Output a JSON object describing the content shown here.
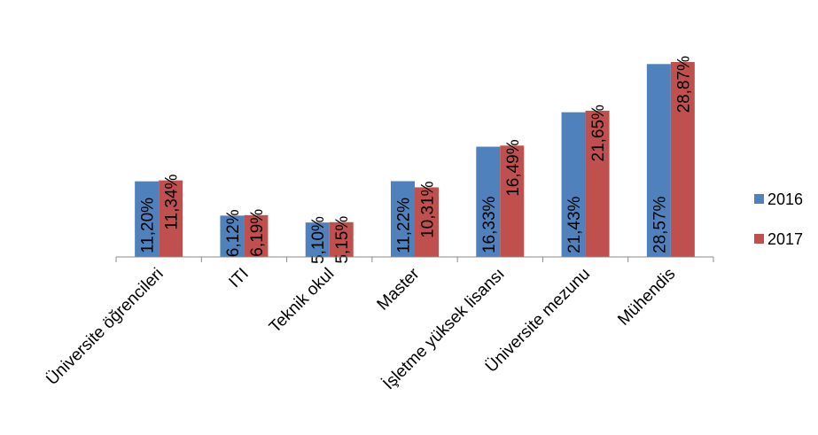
{
  "chart_data": {
    "type": "bar",
    "categories": [
      "Üniversite öğrencileri",
      "ITI",
      "Teknik okul",
      "Master",
      "İşletme yüksek lisansı",
      "Üniversite mezunu",
      "Mühendis"
    ],
    "series": [
      {
        "name": "2016",
        "color": "#4f81bd",
        "values": [
          11.2,
          6.12,
          5.1,
          11.22,
          16.33,
          21.43,
          28.57
        ],
        "labels": [
          "11,20%",
          "6,12%",
          "5,10%",
          "11,22%",
          "16,33%",
          "21,43%",
          "28,57%"
        ]
      },
      {
        "name": "2017",
        "color": "#c0504d",
        "values": [
          11.34,
          6.19,
          5.15,
          10.31,
          16.49,
          21.65,
          28.87
        ],
        "labels": [
          "11,34%",
          "6,19%",
          "5,15%",
          "10,31%",
          "16,49%",
          "21,65%",
          "28,87%"
        ]
      }
    ],
    "title": "",
    "xlabel": "",
    "ylabel": "",
    "ylim": [
      0,
      30
    ],
    "grid": false,
    "legend": "right"
  }
}
